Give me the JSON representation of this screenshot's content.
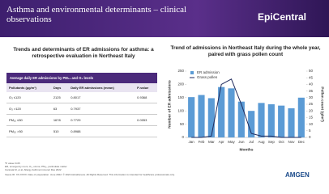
{
  "header": {
    "title": "Asthma and environmental determinants – clinical observations",
    "logo": "EpiCentral"
  },
  "left_title": "Trends and determinants of ER admissions for asthma: a retrospective evaluation in Northeast Italy",
  "table": {
    "caption": "Average daily ER admissions by PM₁₀ and O₃ levels",
    "columns": [
      "Pollutants (µg/m³)",
      "Days",
      "Daily ER admissions (mean)",
      "P-value"
    ],
    "rows": [
      [
        "O₃ ≤120",
        "2125",
        "0.8017",
        "0.9368"
      ],
      [
        "O₃ >120",
        "63",
        "0.7937",
        null
      ],
      [
        "PM₁₀ ≤50",
        "1678",
        "0.7729",
        "0.0053"
      ],
      [
        "PM₁₀ >50",
        "510",
        "0.8988",
        null
      ]
    ]
  },
  "chart_data": {
    "type": "bar",
    "title": "Trend of admissions in Northeast Italy during the whole year, paired with grass pollen count",
    "categories": [
      "Jan",
      "Feb",
      "Mar",
      "Apr",
      "May",
      "Jun",
      "Jul",
      "Aug",
      "Sep",
      "Oct",
      "Nov",
      "Dec"
    ],
    "series": [
      {
        "name": "ER admission",
        "color": "#5b9bd5",
        "values": [
          152,
          160,
          148,
          190,
          185,
          135,
          100,
          130,
          125,
          120,
          110,
          150
        ]
      },
      {
        "name": "Grass pollen",
        "color": "#1f2a5c",
        "type": "line",
        "axis": "y2",
        "values": [
          0,
          0,
          1,
          40,
          44,
          25,
          3,
          1,
          1,
          0,
          0,
          0
        ]
      }
    ],
    "ylim": [
      0,
      250
    ],
    "yticks": [
      0,
      50,
      100,
      150,
      200,
      250
    ],
    "y2lim": [
      0,
      50
    ],
    "y2ticks": [
      0,
      5,
      10,
      15,
      20,
      25,
      30,
      35,
      40,
      45,
      50
    ],
    "ylabel": "Number of ER admissions",
    "y2label": "Pollen count (g/m³)",
    "xlabel": "Months",
    "legend": "upper left",
    "grid": false
  },
  "footer": {
    "notes": [
      "*P value<0.05",
      "ER, emergency room; O₃, ozone; PM₁₀, particulate matter",
      "Cannata M, et al. Allergy Asthma Immunol Res 2022"
    ],
    "legal": "Veeva ID: XX-XXXX. Date of preparation: June 2022. © 2022 AstraZeneca. All Rights Reserved. This information is intended for healthcare professionals only.",
    "logo": "AMGEN"
  }
}
